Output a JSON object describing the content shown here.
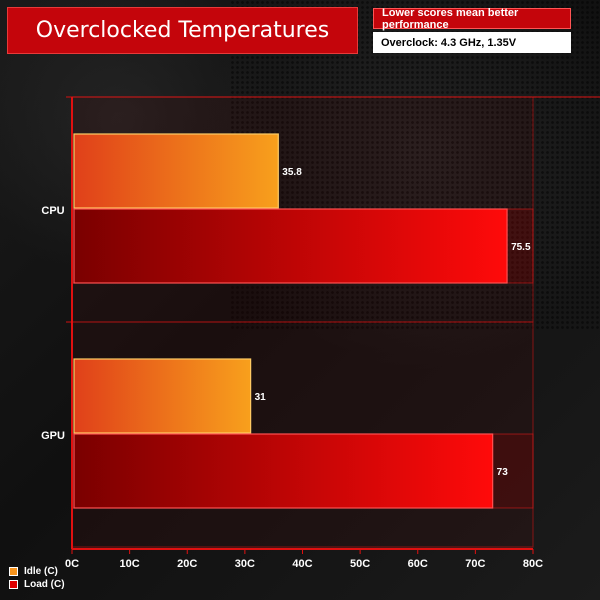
{
  "chart_data": {
    "type": "bar",
    "orientation": "horizontal",
    "title": "Overclocked Temperatures",
    "notes": [
      "Lower scores mean better performance",
      "Overclock: 4.3 GHz, 1.35V"
    ],
    "categories": [
      "CPU",
      "GPU"
    ],
    "series": [
      {
        "name": "Idle (C)",
        "values": [
          35.8,
          31
        ],
        "color": "#f7941d"
      },
      {
        "name": "Load (C)",
        "values": [
          75.5,
          73
        ],
        "color": "#e00000"
      }
    ],
    "xlim": [
      0,
      80
    ],
    "xticks": [
      "0C",
      "10C",
      "20C",
      "30C",
      "40C",
      "50C",
      "60C",
      "70C",
      "80C"
    ],
    "legend": "bottom-left"
  }
}
